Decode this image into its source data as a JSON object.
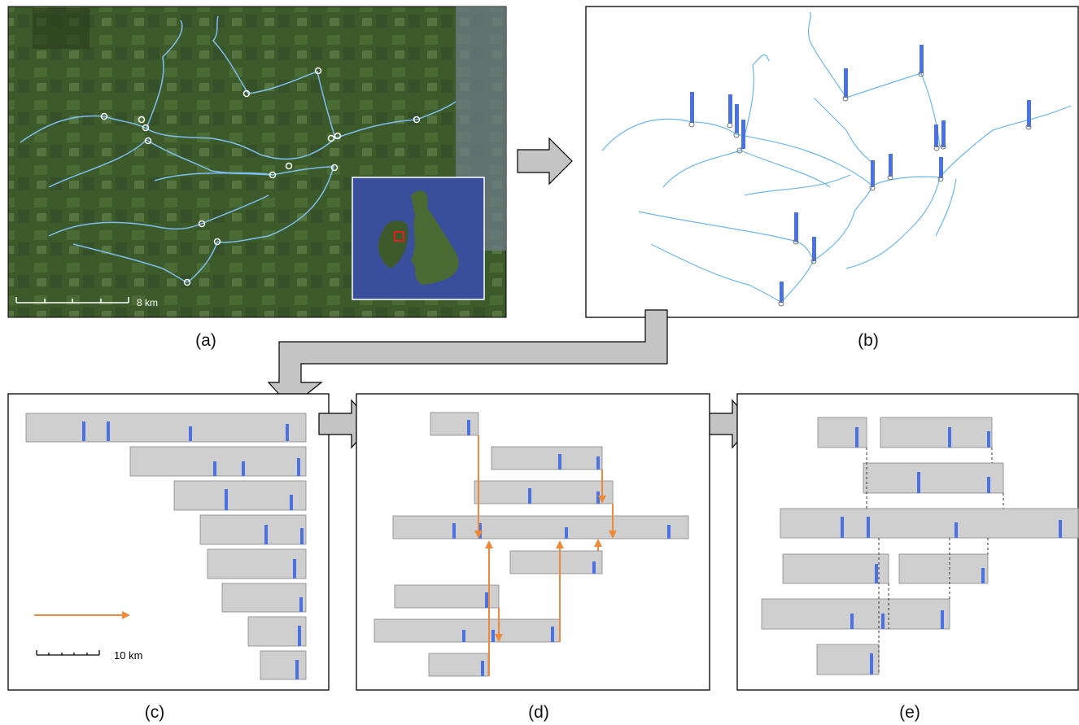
{
  "panel_a": {
    "label": "(a)",
    "scale_bar": "8 km"
  },
  "panel_b": {
    "label": "(b)"
  },
  "panel_c": {
    "label": "(c)",
    "scale_bar": "10 km"
  },
  "panel_d": {
    "label": "(d)"
  },
  "panel_e": {
    "label": "(e)"
  }
}
